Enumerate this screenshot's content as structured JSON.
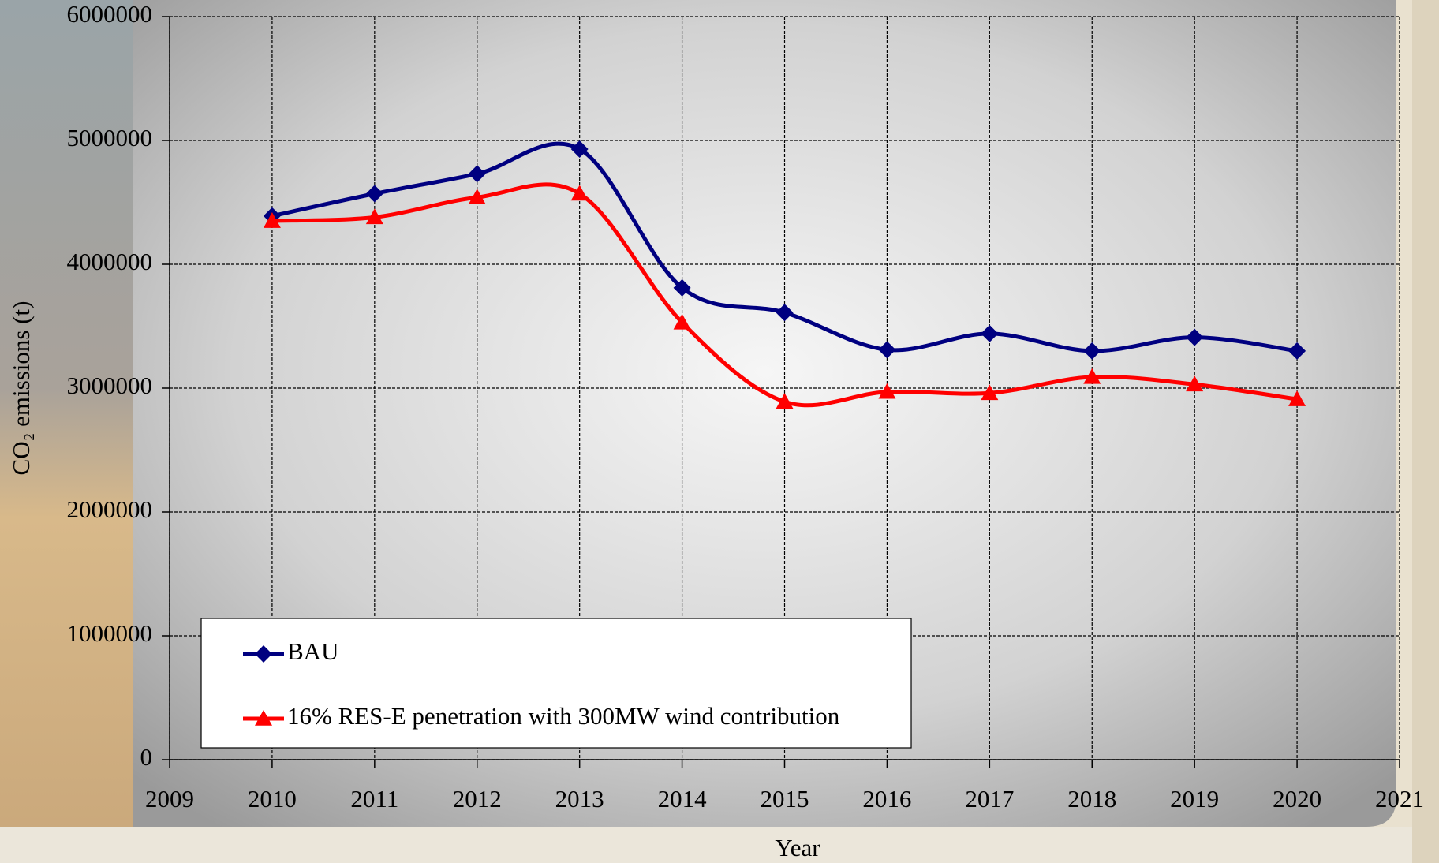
{
  "chart_data": {
    "type": "line",
    "x_label": "Year",
    "y_label": "CO₂ emissions (t)",
    "x": [
      2010,
      2011,
      2012,
      2013,
      2014,
      2015,
      2016,
      2017,
      2018,
      2019,
      2020
    ],
    "series": [
      {
        "name": "BAU",
        "color": "#000080",
        "marker": "diamond",
        "values": [
          4390000,
          4570000,
          4730000,
          4930000,
          3810000,
          3610000,
          3310000,
          3440000,
          3300000,
          3410000,
          3300000
        ]
      },
      {
        "name": "16% RES-E penetration with 300MW wind contribution",
        "color": "#ff0000",
        "marker": "triangle",
        "values": [
          4350000,
          4380000,
          4540000,
          4570000,
          3530000,
          2890000,
          2970000,
          2960000,
          3090000,
          3030000,
          2910000
        ]
      }
    ],
    "xlim": [
      2009,
      2021
    ],
    "xticks": [
      2009,
      2010,
      2011,
      2012,
      2013,
      2014,
      2015,
      2016,
      2017,
      2018,
      2019,
      2020,
      2021
    ],
    "ylim": [
      0,
      6000000
    ],
    "yticks": [
      0,
      1000000,
      2000000,
      3000000,
      4000000,
      5000000,
      6000000
    ],
    "grid": true,
    "smooth": true,
    "legend": "lower-left"
  }
}
